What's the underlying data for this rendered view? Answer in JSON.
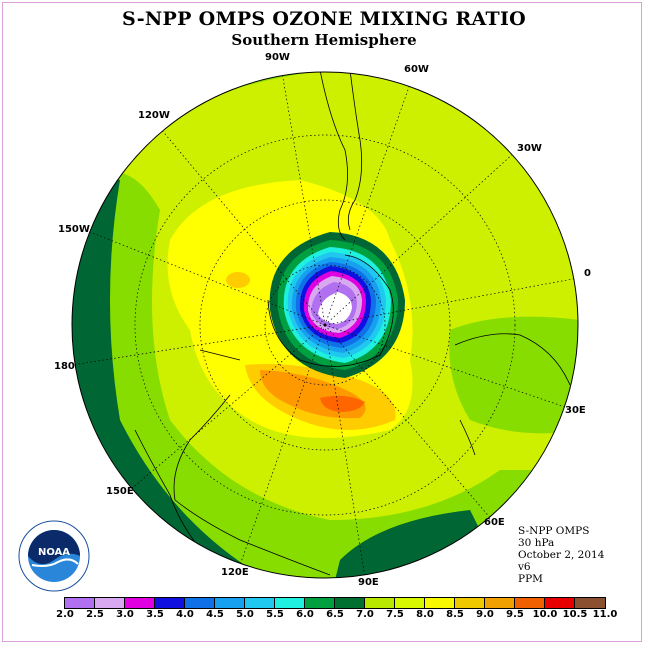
{
  "title": "S-NPP OMPS OZONE MIXING RATIO",
  "subtitle": "Southern Hemisphere",
  "info": {
    "instrument": "S-NPP OMPS",
    "level": "30 hPa",
    "date": "October 2, 2014",
    "version": "v6",
    "units": "PPM"
  },
  "longitude_labels": [
    "90W",
    "60W",
    "120W",
    "30W",
    "150W",
    "0",
    "180",
    "30E",
    "150E",
    "60E",
    "120E",
    "90E"
  ],
  "colorbar": {
    "ticks": [
      "2.0",
      "2.5",
      "3.0",
      "3.5",
      "4.0",
      "4.5",
      "5.0",
      "5.5",
      "6.0",
      "6.5",
      "7.0",
      "7.5",
      "8.0",
      "8.5",
      "9.0",
      "9.5",
      "10.0",
      "10.5",
      "11.0"
    ],
    "colors": [
      "#b070f0",
      "#d8a8f0",
      "#e000e0",
      "#1010e0",
      "#1070e8",
      "#18a0f0",
      "#20c8f0",
      "#20f0e0",
      "#00a040",
      "#007030",
      "#b8e800",
      "#d8f800",
      "#f8f800",
      "#f0c800",
      "#f0a000",
      "#f06000",
      "#e80000",
      "#8a5030"
    ]
  },
  "logo_text": "NOAA",
  "colors": {
    "dark_green": "#006633",
    "green": "#88dd00",
    "yellow_green": "#ccf000",
    "yellow": "#ffff00",
    "gold": "#ffcc00",
    "orange": "#ff9900",
    "dark_orange": "#ff6600"
  }
}
